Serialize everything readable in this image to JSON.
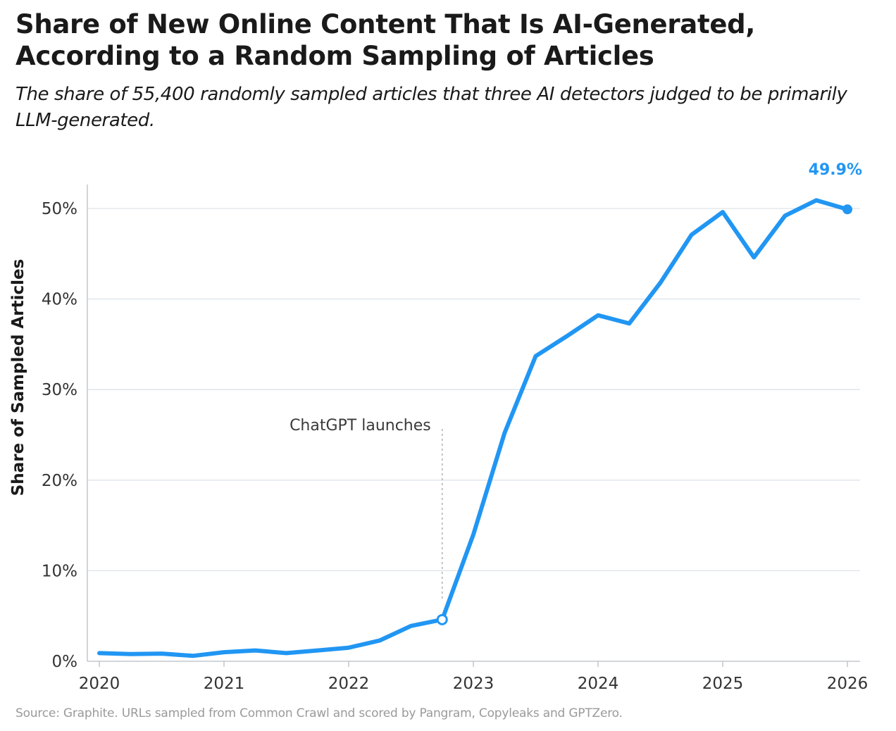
{
  "title": "Share of New Online Content That Is AI-Generated, According to a Random Sampling of Articles",
  "subtitle": "The share of 55,400 randomly sampled articles that three AI detectors judged to be primarily LLM-generated.",
  "source": "Source: Graphite. URLs sampled from Common Crawl and scored by Pangram, Copyleaks and GPTZero.",
  "colors": {
    "line": "#2196f3",
    "grid": "#dde3e8",
    "axis": "#b8bec4",
    "annotation_line": "#b0b0b0"
  },
  "chart_data": {
    "type": "line",
    "title": "Share of New Online Content That Is AI-Generated, According to a Random Sampling of Articles",
    "ylabel": "Share of Sampled Articles",
    "xlabel": "",
    "xlim": [
      2020,
      2026
    ],
    "ylim": [
      0,
      52
    ],
    "grid": true,
    "x_ticks": [
      2020,
      2021,
      2022,
      2023,
      2024,
      2025,
      2026
    ],
    "x_tick_labels": [
      "2020",
      "2021",
      "2022",
      "2023",
      "2024",
      "2025",
      "2026"
    ],
    "y_ticks": [
      0,
      10,
      20,
      30,
      40,
      50
    ],
    "y_tick_labels": [
      "0%",
      "10%",
      "20%",
      "30%",
      "40%",
      "50%"
    ],
    "series": [
      {
        "x": [
          2020.0,
          2020.25,
          2020.5,
          2020.75,
          2021.0,
          2021.25,
          2021.5,
          2021.75,
          2022.0,
          2022.25,
          2022.5,
          2022.75,
          2023.0,
          2023.25,
          2023.5,
          2023.75,
          2024.0,
          2024.25,
          2024.5,
          2024.75,
          2025.0,
          2025.25,
          2025.5,
          2025.75,
          2026.0
        ],
        "y": [
          0.9,
          0.8,
          0.85,
          0.6,
          1.0,
          1.2,
          0.9,
          1.2,
          1.5,
          2.3,
          3.9,
          4.6,
          14.0,
          25.2,
          33.7,
          35.9,
          38.2,
          37.3,
          41.8,
          47.1,
          49.6,
          44.6,
          49.2,
          50.9,
          49.9
        ]
      }
    ],
    "annotations": [
      {
        "text": "ChatGPT launches",
        "x": 2022.75,
        "y": 4.6
      }
    ],
    "end_label": "49.9%"
  }
}
